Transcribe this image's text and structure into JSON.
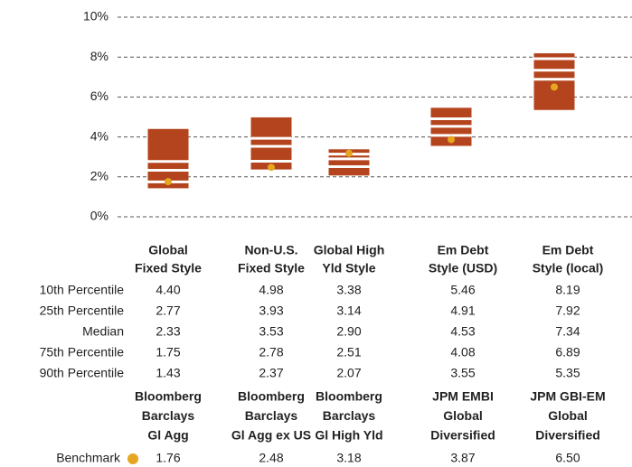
{
  "chart_data": {
    "type": "range",
    "ylim": [
      0,
      10
    ],
    "yticks": [
      {
        "value": 0,
        "label": "0%"
      },
      {
        "value": 2,
        "label": "2%"
      },
      {
        "value": 4,
        "label": "4%"
      },
      {
        "value": 6,
        "label": "6%"
      },
      {
        "value": 8,
        "label": "8%"
      },
      {
        "value": 10,
        "label": "10%"
      }
    ],
    "grid": true,
    "color": "#b4441d",
    "categories": [
      [
        "Global",
        "Fixed Style"
      ],
      [
        "Non-U.S.",
        "Fixed Style"
      ],
      [
        "Global High",
        "Yld Style"
      ],
      [
        "Em Debt",
        "Style (USD)"
      ],
      [
        "Em Debt",
        "Style (local)"
      ]
    ],
    "series": [
      {
        "name": "10th Percentile",
        "values": [
          4.4,
          4.98,
          3.38,
          5.46,
          8.19
        ],
        "value_labels": [
          "4.40",
          "4.98",
          "3.38",
          "5.46",
          "8.19"
        ]
      },
      {
        "name": "25th Percentile",
        "values": [
          2.77,
          3.93,
          3.14,
          4.91,
          7.92
        ],
        "value_labels": [
          "2.77",
          "3.93",
          "3.14",
          "4.91",
          "7.92"
        ]
      },
      {
        "name": "Median",
        "values": [
          2.33,
          3.53,
          2.9,
          4.53,
          7.34
        ],
        "value_labels": [
          "2.33",
          "3.53",
          "2.90",
          "4.53",
          "7.34"
        ]
      },
      {
        "name": "75th Percentile",
        "values": [
          1.75,
          2.78,
          2.51,
          4.08,
          6.89
        ],
        "value_labels": [
          "1.75",
          "2.78",
          "2.51",
          "4.08",
          "6.89"
        ]
      },
      {
        "name": "90th Percentile",
        "values": [
          1.43,
          2.37,
          2.07,
          3.55,
          5.35
        ],
        "value_labels": [
          "1.43",
          "2.37",
          "2.07",
          "3.55",
          "5.35"
        ]
      }
    ],
    "benchmark": {
      "name": "Benchmark",
      "color": "#e6a620",
      "names": [
        [
          "Bloomberg",
          "Barclays",
          "Gl Agg"
        ],
        [
          "Bloomberg",
          "Barclays",
          "Gl Agg ex US"
        ],
        [
          "Bloomberg",
          "Barclays",
          "Gl High Yld"
        ],
        [
          "JPM EMBI",
          "Global",
          "Diversified"
        ],
        [
          "JPM GBI-EM",
          "Global",
          "Diversified"
        ]
      ],
      "values": [
        1.76,
        2.48,
        3.18,
        3.87,
        6.5
      ],
      "value_labels": [
        "1.76",
        "2.48",
        "3.18",
        "3.87",
        "6.50"
      ]
    }
  }
}
